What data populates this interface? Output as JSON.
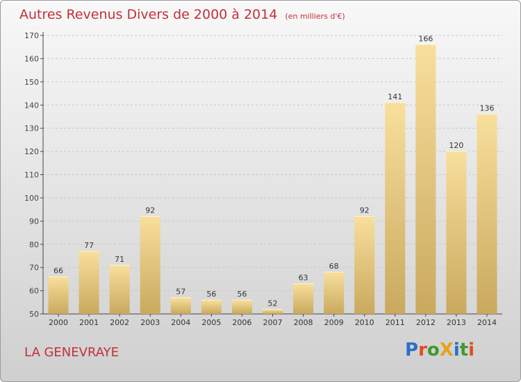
{
  "title": "Autres Revenus Divers de 2000 à 2014",
  "subtitle": "(en milliers d'€)",
  "commune": "LA GENEVRAYE",
  "logo": {
    "text": "ProXiti",
    "letters": [
      {
        "char": "P",
        "color": "#2b6fc7"
      },
      {
        "char": "r",
        "color": "#e34b1d"
      },
      {
        "char": "o",
        "color": "#3f9a2f"
      },
      {
        "char": "X",
        "color": "#e7a21c"
      },
      {
        "char": "i",
        "color": "#2b6fc7"
      },
      {
        "char": "t",
        "color": "#3f9a2f"
      },
      {
        "char": "i",
        "color": "#e34b1d"
      }
    ]
  },
  "colors": {
    "title": "#c0303a",
    "bar_light": "#f8df9c",
    "bar_dark": "#c9a95e",
    "grid": "#c6c6c6"
  },
  "chart_data": {
    "type": "bar",
    "categories": [
      "2000",
      "2001",
      "2002",
      "2003",
      "2004",
      "2005",
      "2006",
      "2007",
      "2008",
      "2009",
      "2010",
      "2011",
      "2012",
      "2013",
      "2014"
    ],
    "values": [
      66,
      77,
      71,
      92,
      57,
      56,
      56,
      52,
      63,
      68,
      92,
      141,
      166,
      120,
      136
    ],
    "ylim": [
      50,
      170
    ],
    "yticks": [
      50,
      60,
      70,
      80,
      90,
      100,
      110,
      120,
      130,
      140,
      150,
      160,
      170
    ],
    "grid": true,
    "title": "Autres Revenus Divers de 2000 à 2014",
    "xlabel": "",
    "ylabel": ""
  }
}
